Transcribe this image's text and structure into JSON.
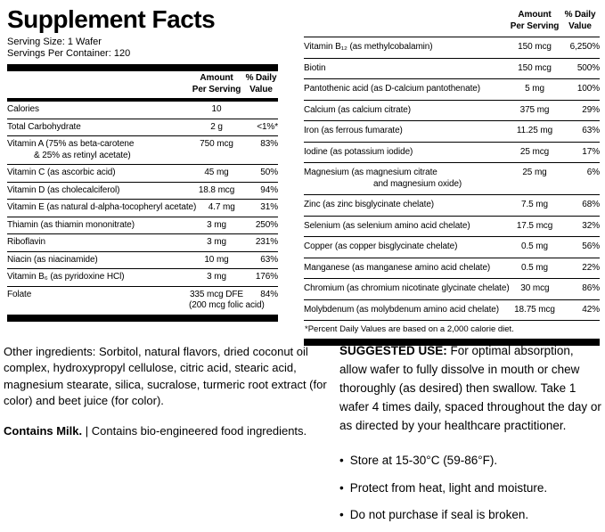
{
  "panel": {
    "title": "Supplement Facts",
    "serving_size": "Serving Size: 1 Wafer",
    "servings_per_container": "Servings Per Container: 120"
  },
  "columns": {
    "amount_line1": "Amount",
    "amount_line2": "Per Serving",
    "dv_line1": "% Daily",
    "dv_line2": "Value"
  },
  "left_table": {
    "rows": [
      {
        "name": "Calories",
        "amount": "10",
        "dv": ""
      },
      {
        "name": "Total Carbohydrate",
        "amount": "2 g",
        "dv": "<1%*"
      },
      {
        "name": "Vitamin A (75% as beta-carotene",
        "name2": "& 25% as retinyl acetate)",
        "amount": "750 mcg",
        "dv": "83%"
      },
      {
        "name": "Vitamin C (as ascorbic acid)",
        "amount": "45 mg",
        "dv": "50%"
      },
      {
        "name": "Vitamin D (as cholecalciferol)",
        "amount": "18.8 mcg",
        "dv": "94%"
      },
      {
        "name": "Vitamin E (as natural d-alpha-tocopheryl acetate)",
        "amount": "4.7 mg",
        "dv": "31%"
      },
      {
        "name": "Thiamin (as thiamin mononitrate)",
        "amount": "3 mg",
        "dv": "250%"
      },
      {
        "name": "Riboflavin",
        "amount": "3 mg",
        "dv": "231%"
      },
      {
        "name": "Niacin (as niacinamide)",
        "amount": "10 mg",
        "dv": "63%"
      },
      {
        "name": "Vitamin B₆ (as pyridoxine HCl)",
        "amount": "3 mg",
        "dv": "176%"
      },
      {
        "name": "Folate",
        "amount": "335 mcg DFE",
        "amount2": "(200 mcg folic acid)",
        "dv": "84%"
      }
    ]
  },
  "right_table": {
    "rows": [
      {
        "name": "Vitamin B₁₂ (as methylcobalamin)",
        "amount": "150 mcg",
        "dv": "6,250%"
      },
      {
        "name": "Biotin",
        "amount": "150 mcg",
        "dv": "500%"
      },
      {
        "name": "Pantothenic acid (as D-calcium pantothenate)",
        "amount": "5 mg",
        "dv": "100%"
      },
      {
        "name": "Calcium (as calcium citrate)",
        "amount": "375 mg",
        "dv": "29%"
      },
      {
        "name": "Iron (as ferrous fumarate)",
        "amount": "11.25 mg",
        "dv": "63%"
      },
      {
        "name": "Iodine (as potassium iodide)",
        "amount": "25 mcg",
        "dv": "17%"
      },
      {
        "name": "Magnesium (as magnesium citrate",
        "name2": "and magnesium oxide)",
        "amount": "25 mg",
        "dv": "6%"
      },
      {
        "name": "Zinc (as zinc bisglycinate chelate)",
        "amount": "7.5 mg",
        "dv": "68%"
      },
      {
        "name": "Selenium (as selenium amino acid chelate)",
        "amount": "17.5 mcg",
        "dv": "32%"
      },
      {
        "name": "Copper (as copper bisglycinate chelate)",
        "amount": "0.5 mg",
        "dv": "56%"
      },
      {
        "name": "Manganese (as manganese amino acid chelate)",
        "amount": "0.5 mg",
        "dv": "22%"
      },
      {
        "name": "Chromium (as chromium nicotinate glycinate chelate)",
        "amount": "30 mcg",
        "dv": "86%"
      },
      {
        "name": "Molybdenum (as molybdenum amino acid chelate)",
        "amount": "18.75 mcg",
        "dv": "42%"
      }
    ],
    "footnote": "*Percent Daily Values are based on a 2,000 calorie diet."
  },
  "other_ingredients": {
    "text": "Other ingredients: Sorbitol, natural flavors, dried coconut oil complex, hydroxypropyl cellulose, citric acid, stearic acid, magnesium stearate, silica, sucralose, turmeric root extract (for color) and beet juice (for color).",
    "contains": "Contains Milk.",
    "separator": "|",
    "bioengineered": "Contains bio-engineered food ingredients."
  },
  "suggested_use": {
    "label": "SUGGESTED USE:",
    "text": "For optimal absorption, allow wafer to fully dissolve in mouth or chew thoroughly (as desired) then swallow. Take 1 wafer 4 times daily, spaced throughout the day or as directed by your healthcare practitioner.",
    "bullet_char": "•",
    "bullets": [
      "Store at 15-30°C (59-86°F).",
      "Protect from heat, light and moisture.",
      "Do not purchase if seal is broken."
    ]
  }
}
